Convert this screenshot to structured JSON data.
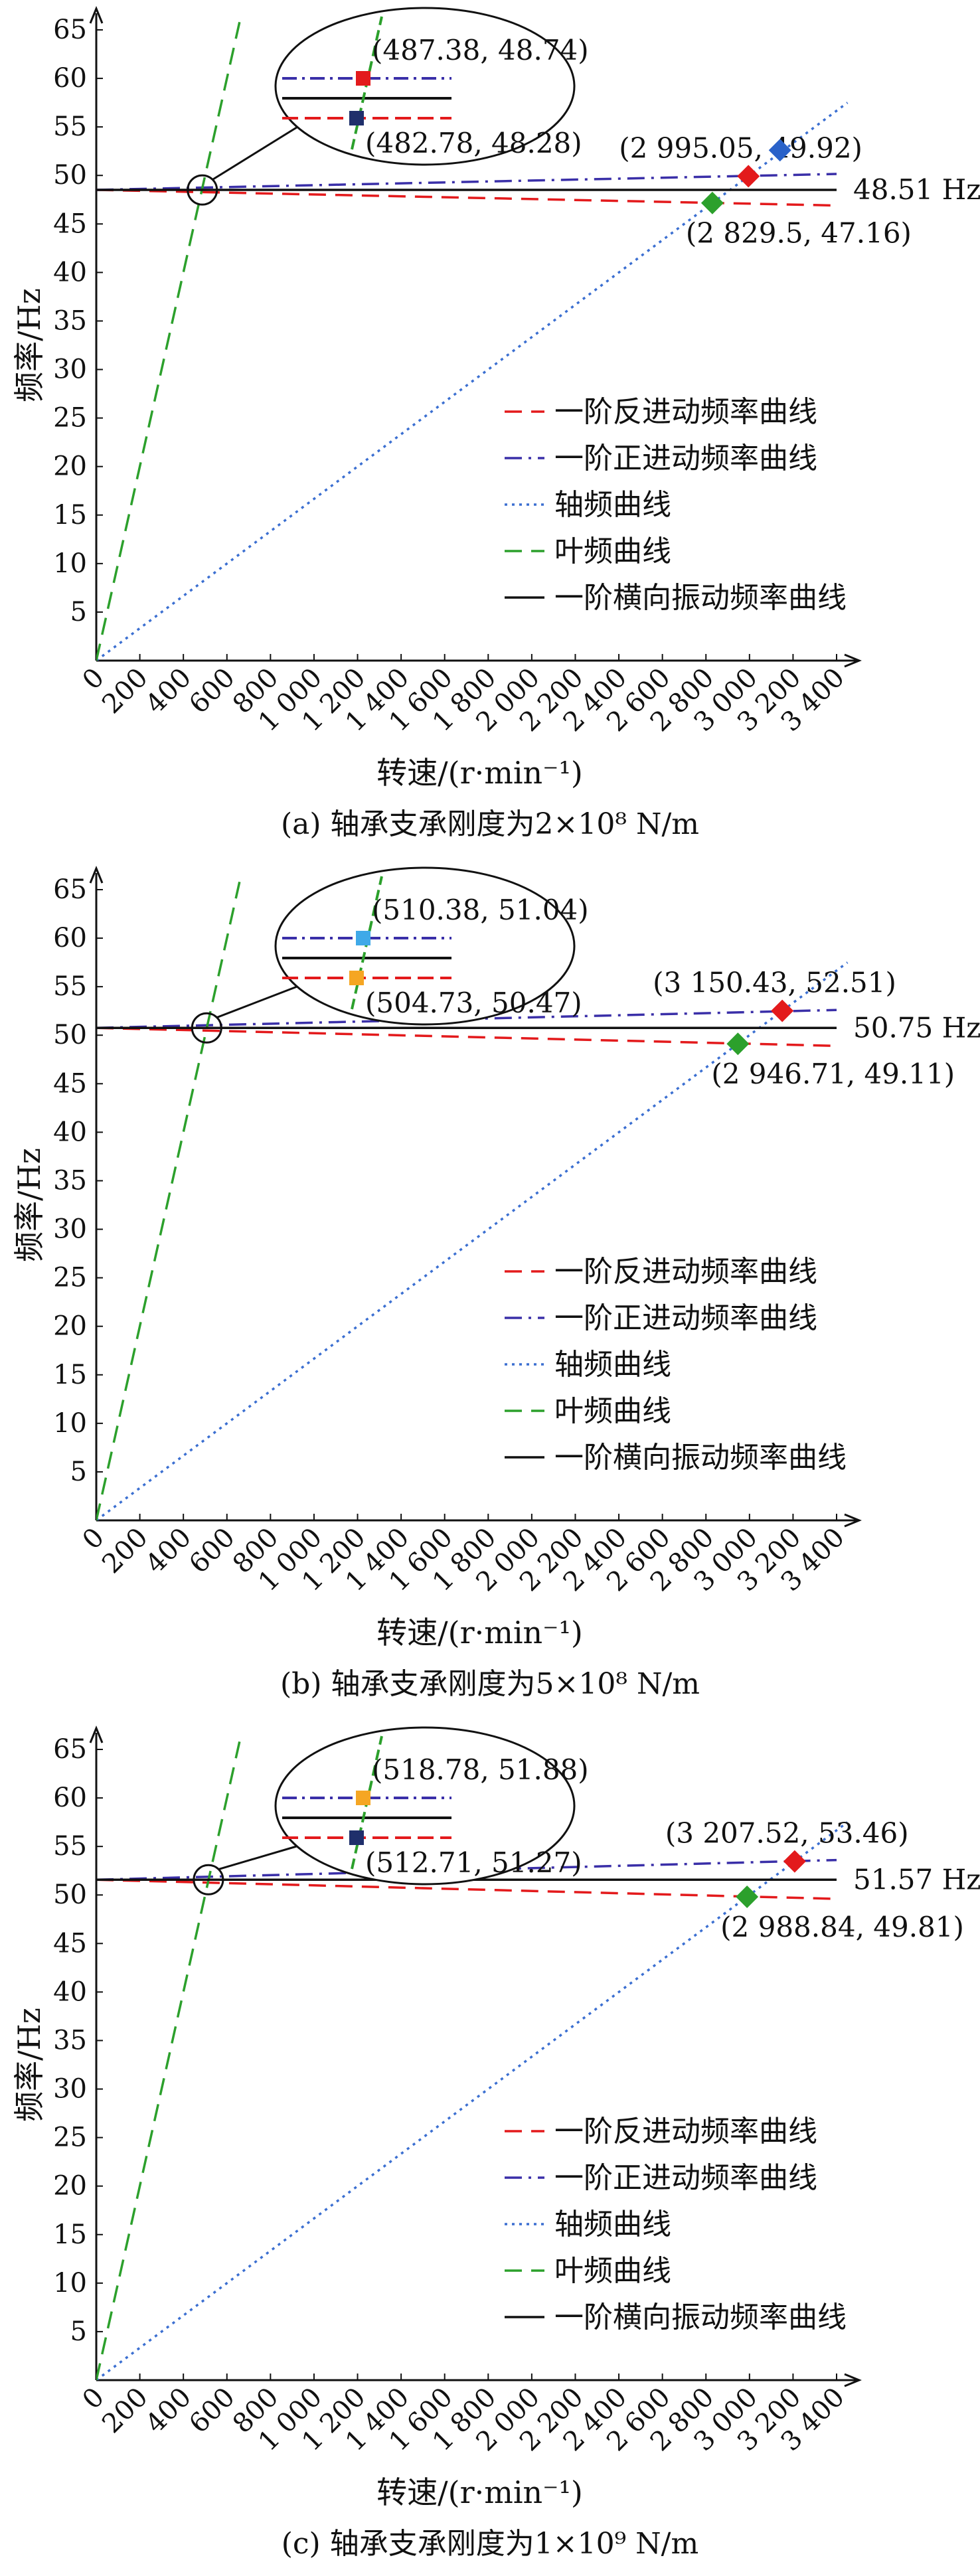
{
  "chart_data": [
    {
      "type": "line",
      "panel_caption": "(a) 轴承支承刚度为2×10⁸ N/m",
      "xlabel": "转速/(r·min⁻¹)",
      "ylabel": "频率/Hz",
      "xlim": [
        0,
        3400
      ],
      "ylim": [
        0,
        65
      ],
      "x_ticks": [
        "0",
        "200",
        "400",
        "600",
        "800",
        "1 000",
        "1 200",
        "1 400",
        "1 600",
        "1 800",
        "2 000",
        "2 200",
        "2 400",
        "2 600",
        "2 800",
        "3 000",
        "3 200",
        "3 400"
      ],
      "y_ticks": [
        "5",
        "10",
        "15",
        "20",
        "25",
        "30",
        "35",
        "40",
        "45",
        "50",
        "55",
        "60",
        "65"
      ],
      "legend_position": "lower-right",
      "series": [
        {
          "name": "一阶反进动频率曲线",
          "color": "#e31a1c",
          "dash": "dashed",
          "x": [
            0,
            3400
          ],
          "y": [
            48.51,
            46.9
          ]
        },
        {
          "name": "一阶正进动频率曲线",
          "color": "#3a2fa8",
          "dash": "dashdot",
          "x": [
            0,
            3400
          ],
          "y": [
            48.51,
            50.15
          ]
        },
        {
          "name": "轴频曲线",
          "color": "#3b6fd1",
          "dash": "dotted",
          "x": [
            0,
            3450
          ],
          "y": [
            0,
            57.5
          ]
        },
        {
          "name": "叶频曲线",
          "color": "#2ca02c",
          "dash": "dashed",
          "x": [
            0,
            658
          ],
          "y": [
            0,
            65.8
          ]
        },
        {
          "name": "一阶横向振动频率曲线",
          "color": "#111111",
          "dash": "solid",
          "x": [
            0,
            3400
          ],
          "y": [
            48.51,
            48.51
          ]
        }
      ],
      "reference_label": "48.51 Hz",
      "intersections": [
        {
          "label": "(2 995.05, 49.92)",
          "x": 2995.05,
          "y": 49.92,
          "color": "#e31a1c"
        },
        {
          "label": "(2 829.5, 47.16)",
          "x": 2829.5,
          "y": 47.16,
          "color": "#2ca02c"
        },
        {
          "label": "",
          "x": 3140,
          "y": 52.6,
          "color": "#2a62c9"
        }
      ],
      "zoom_points": [
        {
          "label": "(487.38, 48.74)",
          "color": "#e31a1c"
        },
        {
          "label": "(482.78, 48.28)",
          "color": "#1f2f6b"
        }
      ],
      "zoom_center": {
        "x": 487,
        "y": 48.5
      }
    },
    {
      "type": "line",
      "panel_caption": "(b) 轴承支承刚度为5×10⁸ N/m",
      "xlabel": "转速/(r·min⁻¹)",
      "ylabel": "频率/Hz",
      "xlim": [
        0,
        3400
      ],
      "ylim": [
        0,
        65
      ],
      "x_ticks": [
        "0",
        "200",
        "400",
        "600",
        "800",
        "1 000",
        "1 200",
        "1 400",
        "1 600",
        "1 800",
        "2 000",
        "2 200",
        "2 400",
        "2 600",
        "2 800",
        "3 000",
        "3 200",
        "3 400"
      ],
      "y_ticks": [
        "5",
        "10",
        "15",
        "20",
        "25",
        "30",
        "35",
        "40",
        "45",
        "50",
        "55",
        "60",
        "65"
      ],
      "legend_position": "lower-right",
      "series": [
        {
          "name": "一阶反进动频率曲线",
          "color": "#e31a1c",
          "dash": "dashed",
          "x": [
            0,
            3400
          ],
          "y": [
            50.75,
            48.9
          ]
        },
        {
          "name": "一阶正进动频率曲线",
          "color": "#3a2fa8",
          "dash": "dashdot",
          "x": [
            0,
            3400
          ],
          "y": [
            50.75,
            52.6
          ]
        },
        {
          "name": "轴频曲线",
          "color": "#3b6fd1",
          "dash": "dotted",
          "x": [
            0,
            3450
          ],
          "y": [
            0,
            57.5
          ]
        },
        {
          "name": "叶频曲线",
          "color": "#2ca02c",
          "dash": "dashed",
          "x": [
            0,
            658
          ],
          "y": [
            0,
            65.8
          ]
        },
        {
          "name": "一阶横向振动频率曲线",
          "color": "#111111",
          "dash": "solid",
          "x": [
            0,
            3400
          ],
          "y": [
            50.75,
            50.75
          ]
        }
      ],
      "reference_label": "50.75 Hz",
      "intersections": [
        {
          "label": "(3 150.43, 52.51)",
          "x": 3150.43,
          "y": 52.51,
          "color": "#e31a1c"
        },
        {
          "label": "(2 946.71, 49.11)",
          "x": 2946.71,
          "y": 49.11,
          "color": "#2ca02c"
        }
      ],
      "zoom_points": [
        {
          "label": "(510.38, 51.04)",
          "color": "#3fa9e8"
        },
        {
          "label": "(504.73, 50.47)",
          "color": "#f5a623"
        }
      ],
      "zoom_center": {
        "x": 507,
        "y": 50.75
      }
    },
    {
      "type": "line",
      "panel_caption": "(c) 轴承支承刚度为1×10⁹ N/m",
      "xlabel": "转速/(r·min⁻¹)",
      "ylabel": "频率/Hz",
      "xlim": [
        0,
        3400
      ],
      "ylim": [
        0,
        65
      ],
      "x_ticks": [
        "0",
        "200",
        "400",
        "600",
        "800",
        "1 000",
        "1 200",
        "1 400",
        "1 600",
        "1 800",
        "2 000",
        "2 200",
        "2 400",
        "2 600",
        "2 800",
        "3 000",
        "3 200",
        "3 400"
      ],
      "y_ticks": [
        "5",
        "10",
        "15",
        "20",
        "25",
        "30",
        "35",
        "40",
        "45",
        "50",
        "55",
        "60",
        "65"
      ],
      "legend_position": "lower-right",
      "series": [
        {
          "name": "一阶反进动频率曲线",
          "color": "#e31a1c",
          "dash": "dashed",
          "x": [
            0,
            3400
          ],
          "y": [
            51.57,
            49.6
          ]
        },
        {
          "name": "一阶正进动频率曲线",
          "color": "#3a2fa8",
          "dash": "dashdot",
          "x": [
            0,
            3400
          ],
          "y": [
            51.57,
            53.6
          ]
        },
        {
          "name": "轴频曲线",
          "color": "#3b6fd1",
          "dash": "dotted",
          "x": [
            0,
            3450
          ],
          "y": [
            0,
            57.5
          ]
        },
        {
          "name": "叶频曲线",
          "color": "#2ca02c",
          "dash": "dashed",
          "x": [
            0,
            658
          ],
          "y": [
            0,
            65.8
          ]
        },
        {
          "name": "一阶横向振动频率曲线",
          "color": "#111111",
          "dash": "solid",
          "x": [
            0,
            3400
          ],
          "y": [
            51.57,
            51.57
          ]
        }
      ],
      "reference_label": "51.57 Hz",
      "intersections": [
        {
          "label": "(3 207.52, 53.46)",
          "x": 3207.52,
          "y": 53.46,
          "color": "#e31a1c"
        },
        {
          "label": "(2 988.84, 49.81)",
          "x": 2988.84,
          "y": 49.81,
          "color": "#2ca02c"
        }
      ],
      "zoom_points": [
        {
          "label": "(518.78, 51.88)",
          "color": "#f5a623"
        },
        {
          "label": "(512.71, 51.27)",
          "color": "#1f2f6b"
        }
      ],
      "zoom_center": {
        "x": 515,
        "y": 51.57
      }
    }
  ]
}
